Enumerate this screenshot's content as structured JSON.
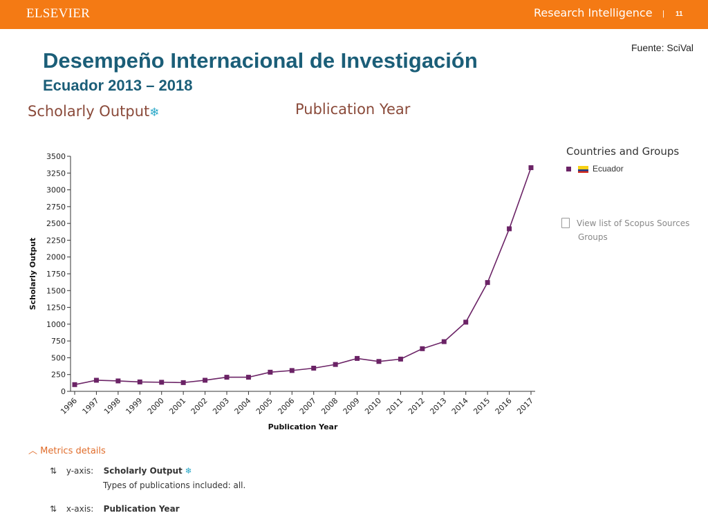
{
  "header": {
    "brand": "ELSEVIER",
    "product": "Research Intelligence",
    "separator": "|",
    "page_number": "11"
  },
  "slide": {
    "source": "Fuente: SciVal",
    "title": "Desempeño Internacional de Investigación",
    "subtitle": "Ecuador 2013 – 2018",
    "metric_title": "Scholarly Output",
    "metric_icon": "snowflake-icon",
    "dimension_title": "Publication Year"
  },
  "legend": {
    "title": "Countries and Groups",
    "items": [
      {
        "name": "Ecuador",
        "color": "#6b2366",
        "icon": "ecuador-flag-icon"
      }
    ],
    "view_list_line1": "View list of Scopus Sources",
    "view_list_line2": "Groups"
  },
  "metrics": {
    "toggle_label": "Metrics details",
    "y_axis_label": "y-axis:",
    "y_axis_value": "Scholarly Output",
    "y_axis_note": "Types of publications included: all.",
    "x_axis_label": "x-axis:",
    "x_axis_value": "Publication Year",
    "sort_icon": "sort-icon"
  },
  "chart_data": {
    "type": "line",
    "xlabel": "Publication Year",
    "ylabel": "Scholarly Output",
    "ylim": [
      0,
      3500
    ],
    "yticks": [
      0,
      250,
      500,
      750,
      1000,
      1250,
      1500,
      1750,
      2000,
      2250,
      2500,
      2750,
      3000,
      3250,
      3500
    ],
    "categories": [
      "1996",
      "1997",
      "1998",
      "1999",
      "2000",
      "2001",
      "2002",
      "2003",
      "2004",
      "2005",
      "2006",
      "2007",
      "2008",
      "2009",
      "2010",
      "2011",
      "2012",
      "2013",
      "2014",
      "2015",
      "2016",
      "2017"
    ],
    "series": [
      {
        "name": "Ecuador",
        "color": "#6b2366",
        "values": [
          100,
          165,
          155,
          140,
          135,
          130,
          165,
          210,
          210,
          285,
          310,
          345,
          400,
          490,
          445,
          480,
          635,
          740,
          1030,
          1620,
          2420,
          3330
        ]
      }
    ],
    "grid": false,
    "legend_position": "right"
  }
}
